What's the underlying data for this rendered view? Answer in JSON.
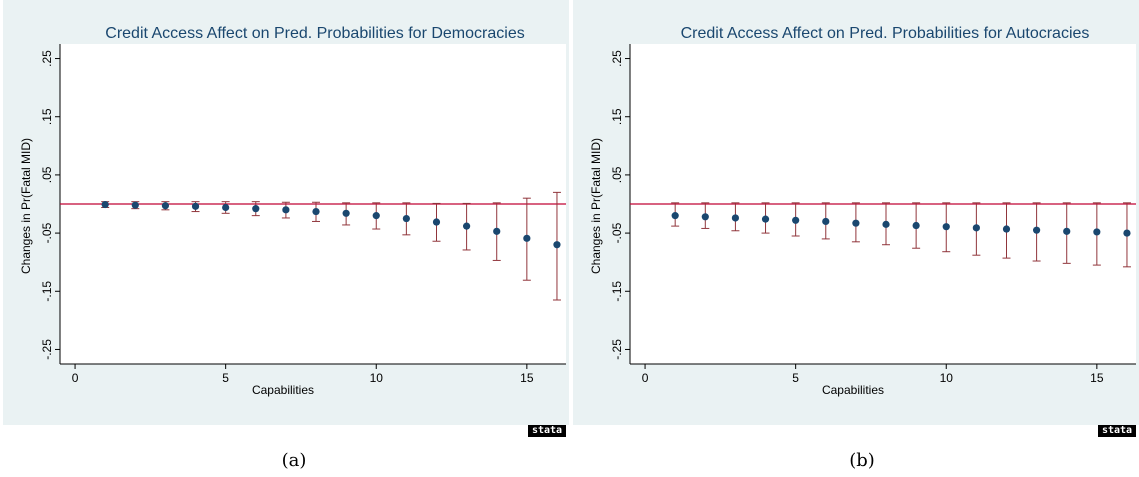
{
  "chart_data": [
    {
      "type": "scatter",
      "title": "Credit Access Affect on Pred. Probabilities for Democracies",
      "xlabel": "Capabilities",
      "ylabel": "Changes in Pr(Fatal MID)",
      "xlim": [
        -0.5,
        16.3
      ],
      "ylim": [
        -0.275,
        0.275
      ],
      "xticks": [
        0,
        5,
        10,
        15
      ],
      "xtick_labels": [
        "0",
        "5",
        "10",
        "15"
      ],
      "yticks": [
        -0.25,
        -0.15,
        -0.05,
        0.05,
        0.15,
        0.25
      ],
      "ytick_labels": [
        "-.25",
        "-.15",
        "-.05",
        ".05",
        ".15",
        ".25"
      ],
      "reference_line": 0,
      "x": [
        1,
        2,
        3,
        4,
        5,
        6,
        7,
        8,
        9,
        10,
        11,
        12,
        13,
        14,
        15,
        16
      ],
      "y": [
        -0.001,
        -0.002,
        -0.003,
        -0.004,
        -0.006,
        -0.008,
        -0.01,
        -0.013,
        -0.016,
        -0.02,
        -0.025,
        -0.031,
        -0.038,
        -0.047,
        -0.059,
        -0.07
      ],
      "lower": [
        -0.006,
        -0.008,
        -0.01,
        -0.013,
        -0.016,
        -0.02,
        -0.024,
        -0.03,
        -0.036,
        -0.043,
        -0.053,
        -0.064,
        -0.079,
        -0.097,
        -0.131,
        -0.165
      ],
      "upper": [
        0.004,
        0.004,
        0.004,
        0.004,
        0.004,
        0.004,
        0.003,
        0.003,
        0.002,
        0.002,
        0.002,
        0.001,
        0.001,
        0.002,
        0.01,
        0.02
      ]
    },
    {
      "type": "scatter",
      "title": "Credit Access Affect on Pred. Probabilities for Autocracies",
      "xlabel": "Capabilities",
      "ylabel": "Changes in Pr(Fatal MID)",
      "xlim": [
        -0.5,
        16.3
      ],
      "ylim": [
        -0.275,
        0.275
      ],
      "xticks": [
        0,
        5,
        10,
        15
      ],
      "xtick_labels": [
        "0",
        "5",
        "10",
        "15"
      ],
      "yticks": [
        -0.25,
        -0.15,
        -0.05,
        0.05,
        0.15,
        0.25
      ],
      "ytick_labels": [
        "-.25",
        "-.15",
        "-.05",
        ".05",
        ".15",
        ".25"
      ],
      "reference_line": 0,
      "x": [
        1,
        2,
        3,
        4,
        5,
        6,
        7,
        8,
        9,
        10,
        11,
        12,
        13,
        14,
        15,
        16
      ],
      "y": [
        -0.02,
        -0.022,
        -0.024,
        -0.026,
        -0.028,
        -0.03,
        -0.033,
        -0.035,
        -0.037,
        -0.039,
        -0.041,
        -0.043,
        -0.045,
        -0.047,
        -0.048,
        -0.05
      ],
      "lower": [
        -0.038,
        -0.042,
        -0.046,
        -0.05,
        -0.055,
        -0.06,
        -0.065,
        -0.07,
        -0.076,
        -0.082,
        -0.088,
        -0.093,
        -0.098,
        -0.102,
        -0.105,
        -0.108
      ],
      "upper": [
        0.002,
        0.002,
        0.002,
        0.002,
        0.002,
        0.002,
        0.002,
        0.002,
        0.002,
        0.002,
        0.002,
        0.002,
        0.002,
        0.002,
        0.002,
        0.002
      ]
    }
  ],
  "logo_text": "stata",
  "captions": [
    "(a)",
    "(b)"
  ],
  "colors": {
    "background": "#eaf2f3",
    "title": "#1a476f",
    "marker": "#1a476f",
    "errorbar": "#90353b",
    "refline": "#c10534"
  }
}
